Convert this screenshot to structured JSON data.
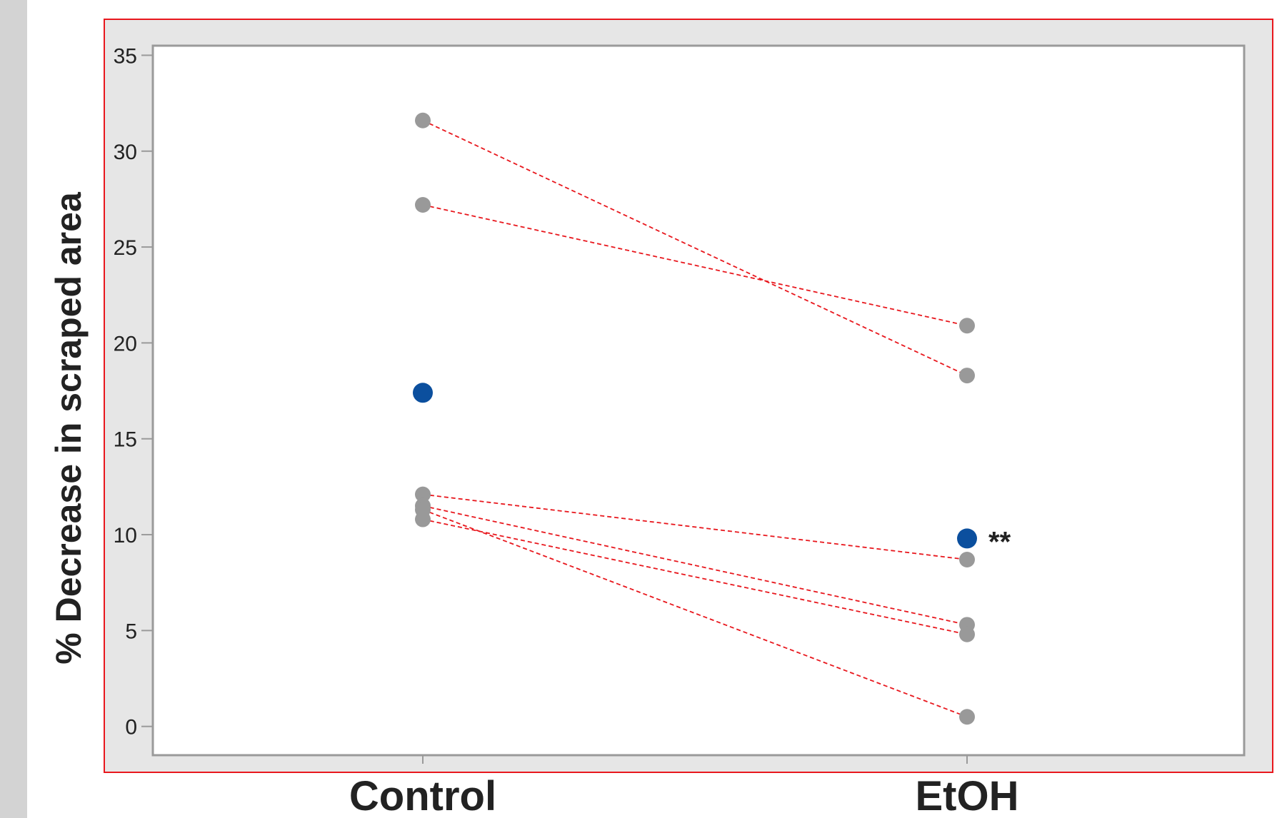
{
  "chart_data": {
    "type": "scatter",
    "ylabel": "% Decrease in scraped area",
    "categories": [
      "Control",
      "EtOH"
    ],
    "ylim": [
      -1.5,
      35.5
    ],
    "yticks": [
      "0",
      "5",
      "10",
      "15",
      "20",
      "25",
      "30",
      "35"
    ],
    "grid": false,
    "legend": "none",
    "pairs": [
      {
        "control": 31.6,
        "etoh": 18.3
      },
      {
        "control": 27.2,
        "etoh": 20.9
      },
      {
        "control": 12.1,
        "etoh": 8.7
      },
      {
        "control": 11.5,
        "etoh": 5.3
      },
      {
        "control": 11.3,
        "etoh": 0.5
      },
      {
        "control": 10.8,
        "etoh": 4.8
      }
    ],
    "means": [
      {
        "category": "Control",
        "value": 17.4
      },
      {
        "category": "EtOH",
        "value": 9.8
      }
    ],
    "annotations": [
      {
        "category": "EtOH",
        "text": "**"
      }
    ],
    "colors": {
      "point": "#999999",
      "mean": "#0b4f9e",
      "line": "#e8171d",
      "frame": "#e8171d",
      "plot_bg": "#e6e6e6",
      "axes_bg": "#ffffff"
    }
  }
}
